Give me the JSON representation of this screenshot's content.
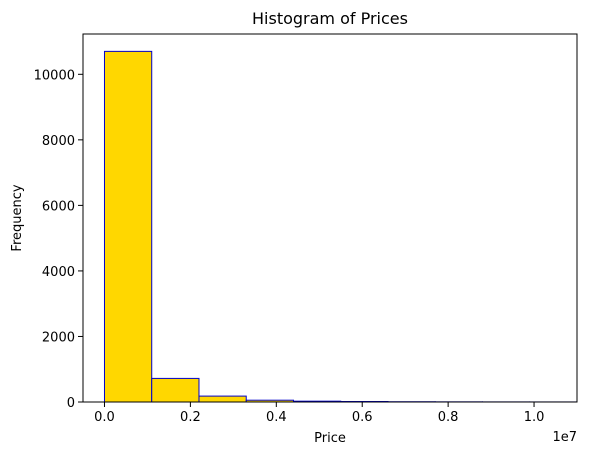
{
  "chart_data": {
    "type": "bar",
    "title": "Histogram of Prices",
    "xlabel": "Price",
    "ylabel": "Frequency",
    "x_offset_label": "1e7",
    "xlim": [
      -0.05,
      1.1
    ],
    "ylim": [
      0,
      11230
    ],
    "bin_edges": [
      0.0,
      0.11,
      0.22,
      0.33,
      0.44,
      0.55,
      0.66,
      0.77,
      0.88,
      0.99,
      1.1
    ],
    "values": [
      10700,
      720,
      180,
      55,
      25,
      15,
      8,
      5,
      3,
      2
    ],
    "x_ticks": [
      0.0,
      0.2,
      0.4,
      0.6,
      0.8,
      1.0
    ],
    "x_tick_labels": [
      "0.0",
      "0.2",
      "0.4",
      "0.6",
      "0.8",
      "1.0"
    ],
    "y_ticks": [
      0,
      2000,
      4000,
      6000,
      8000,
      10000
    ],
    "y_tick_labels": [
      "0",
      "2000",
      "4000",
      "6000",
      "8000",
      "10000"
    ],
    "bar_color": "#ffd700",
    "edge_color": "#0000cd",
    "grid": false
  }
}
